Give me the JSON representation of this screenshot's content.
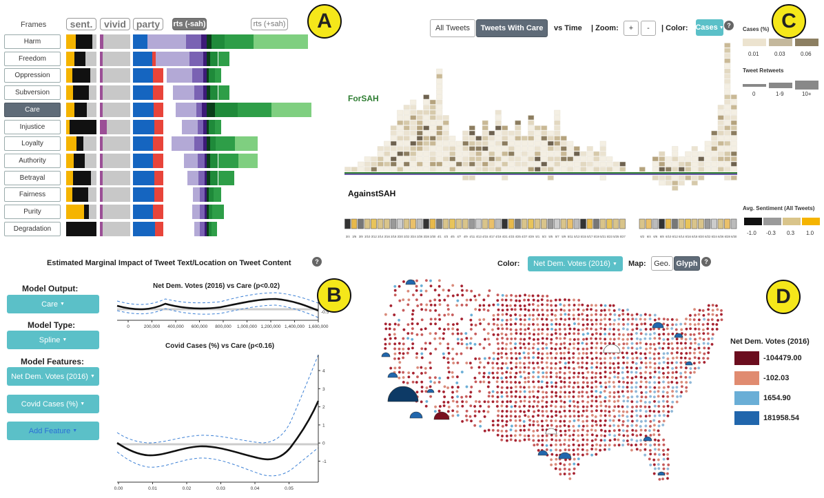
{
  "panel_labels": {
    "a": "A",
    "b": "B",
    "c": "C",
    "d": "D"
  },
  "panel_a": {
    "frames_header": "Frames",
    "col_headers": {
      "sent": "sent.",
      "vivid": "vivid",
      "party": "party",
      "rts_minus": "rts (-sah)",
      "rts_plus": "rts (+sah)"
    },
    "frames": [
      "Harm",
      "Freedom",
      "Oppression",
      "Subversion",
      "Care",
      "Injustice",
      "Loyalty",
      "Authority",
      "Betrayal",
      "Fairness",
      "Purity",
      "Degradation"
    ],
    "selected_frame": "Care",
    "bars": [
      {
        "sent": [
          0.32,
          0.55,
          0.13
        ],
        "vivid": 0.12,
        "party": [
          0.65,
          0.35
        ],
        "rts_minus": [
          0.34,
          0.13,
          0.05
        ],
        "rts_plus": [
          0.04,
          0.12,
          0.25,
          0.48
        ]
      },
      {
        "sent": [
          0.28,
          0.35,
          0.37
        ],
        "vivid": 0.1,
        "party": [
          0.64,
          0.36
        ],
        "rts_minus": [
          0.3,
          0.12,
          0.03
        ],
        "rts_plus": [
          0.03,
          0.07,
          0.1,
          0.0
        ]
      },
      {
        "sent": [
          0.2,
          0.6,
          0.2
        ],
        "vivid": 0.08,
        "party": [
          0.66,
          0.34
        ],
        "rts_minus": [
          0.22,
          0.1,
          0.03
        ],
        "rts_plus": [
          0.02,
          0.05,
          0.06,
          0.0
        ]
      },
      {
        "sent": [
          0.22,
          0.52,
          0.26
        ],
        "vivid": 0.08,
        "party": [
          0.65,
          0.35
        ],
        "rts_minus": [
          0.19,
          0.08,
          0.03
        ],
        "rts_plus": [
          0.03,
          0.07,
          0.1,
          0.0
        ]
      },
      {
        "sent": [
          0.28,
          0.4,
          0.32
        ],
        "vivid": 0.1,
        "party": [
          0.68,
          0.32
        ],
        "rts_minus": [
          0.18,
          0.05,
          0.04
        ],
        "rts_plus": [
          0.07,
          0.2,
          0.3,
          0.35
        ]
      },
      {
        "sent": [
          0.12,
          0.88,
          0.0
        ],
        "vivid": 0.22,
        "party": [
          0.7,
          0.3
        ],
        "rts_minus": [
          0.14,
          0.05,
          0.03
        ],
        "rts_plus": [
          0.02,
          0.05,
          0.06,
          0.0
        ]
      },
      {
        "sent": [
          0.34,
          0.22,
          0.44
        ],
        "vivid": 0.08,
        "party": [
          0.67,
          0.33
        ],
        "rts_minus": [
          0.2,
          0.08,
          0.03
        ],
        "rts_plus": [
          0.03,
          0.05,
          0.17,
          0.2
        ]
      },
      {
        "sent": [
          0.24,
          0.38,
          0.38
        ],
        "vivid": 0.08,
        "party": [
          0.66,
          0.34
        ],
        "rts_minus": [
          0.12,
          0.06,
          0.02
        ],
        "rts_plus": [
          0.03,
          0.07,
          0.18,
          0.17
        ]
      },
      {
        "sent": [
          0.22,
          0.6,
          0.18
        ],
        "vivid": 0.08,
        "party": [
          0.7,
          0.3
        ],
        "rts_minus": [
          0.1,
          0.05,
          0.02
        ],
        "rts_plus": [
          0.03,
          0.07,
          0.14,
          0.0
        ]
      },
      {
        "sent": [
          0.2,
          0.52,
          0.28
        ],
        "vivid": 0.08,
        "party": [
          0.7,
          0.3
        ],
        "rts_minus": [
          0.06,
          0.04,
          0.02
        ],
        "rts_plus": [
          0.02,
          0.04,
          0.07,
          0.0
        ]
      },
      {
        "sent": [
          0.6,
          0.15,
          0.25
        ],
        "vivid": 0.1,
        "party": [
          0.66,
          0.34
        ],
        "rts_minus": [
          0.07,
          0.04,
          0.02
        ],
        "rts_plus": [
          0.02,
          0.03,
          0.1,
          0.0
        ]
      },
      {
        "sent": [
          0.0,
          1.0,
          0.0
        ],
        "vivid": 0.1,
        "party": [
          0.72,
          0.28
        ],
        "rts_minus": [
          0.05,
          0.04,
          0.02
        ],
        "rts_plus": [
          0.02,
          0.02,
          0.05,
          0.0
        ]
      }
    ]
  },
  "panel_b": {
    "title": "Estimated Marginal Impact of Tweet Text/Location on Tweet Content",
    "model_output_label": "Model Output:",
    "model_output_value": "Care",
    "model_type_label": "Model Type:",
    "model_type_value": "Spline",
    "model_features_label": "Model Features:",
    "feature_1": "Net Dem. Votes (2016)",
    "feature_2": "Covid Cases (%)",
    "add_feature": "Add Feature",
    "chart1_title": "Net Dem. Votes (2016) vs Care (p<0.02)",
    "chart1_xticks": [
      "0",
      "200,000",
      "400,000",
      "600,000",
      "800,000",
      "1,000,000",
      "1,200,000",
      "1,400,000",
      "1,600,000"
    ],
    "chart1_ytick": "-0.5",
    "chart2_title": "Covid Cases (%) vs Care (p<0.16)",
    "chart2_xticks": [
      "0.00",
      "0.01",
      "0.02",
      "0.03",
      "0.04",
      "0.05"
    ],
    "chart2_yticks": [
      "4",
      "3",
      "2",
      "1",
      "0",
      "-1"
    ]
  },
  "panel_c": {
    "btn_all": "All Tweets",
    "btn_care": "Tweets With Care",
    "vs_time": "vs Time",
    "zoom_label": "| Zoom:",
    "zoom_in": "+",
    "zoom_out": "-",
    "color_label": "| Color:",
    "color_value": "Cases",
    "for_label": "ForSAH",
    "against_label": "AgainstSAH",
    "legend_cases_title": "Cases (%)",
    "legend_cases": [
      "0.01",
      "0.03",
      "0.06"
    ],
    "legend_retweets_title": "Tweet Retweets",
    "legend_retweets": [
      "0",
      "1-9",
      "10+"
    ],
    "legend_sent_title": "Avg. Sentiment (All Tweets)",
    "legend_sent": [
      "-1.0",
      "-0.3",
      "0.3",
      "1.0"
    ],
    "dates": [
      "3/4",
      "3/6",
      "3/8",
      "3/10",
      "3/12",
      "3/14",
      "3/16",
      "3/18",
      "3/20",
      "3/22",
      "3/24",
      "3/26",
      "3/28",
      "3/30",
      "4/1",
      "4/3",
      "4/5",
      "4/7",
      "4/9",
      "4/11",
      "4/13",
      "4/15",
      "4/17",
      "4/19",
      "4/21",
      "4/23",
      "4/25",
      "4/27",
      "4/29",
      "5/1",
      "5/3",
      "5/5",
      "5/7",
      "5/9",
      "5/11",
      "5/13",
      "5/15",
      "5/17",
      "5/19",
      "5/21",
      "5/23",
      "5/25",
      "5/27",
      "5/29",
      "5/31",
      "6/2",
      "6/4",
      "6/6",
      "6/8",
      "6/10",
      "6/12",
      "6/14",
      "6/16",
      "6/18",
      "6/20",
      "6/22",
      "6/24",
      "6/26",
      "6/28",
      "6/30"
    ],
    "for_counts": [
      1,
      1,
      2,
      3,
      3,
      5,
      6,
      9,
      12,
      13,
      14,
      12,
      15,
      14,
      20,
      11,
      7,
      6,
      8,
      9,
      7,
      10,
      8,
      12,
      9,
      8,
      10,
      7,
      11,
      9,
      9,
      8,
      12,
      7,
      6,
      5,
      4,
      5,
      4,
      6,
      3,
      2,
      2,
      0,
      0,
      1,
      0,
      3,
      4,
      3,
      5,
      3,
      4,
      5,
      4,
      6,
      8,
      13,
      25,
      15
    ],
    "against_counts": [
      0,
      0,
      0,
      0,
      0,
      0,
      0,
      0,
      0,
      0,
      0,
      0,
      0,
      0,
      0,
      0,
      0,
      0,
      1,
      1,
      0,
      0,
      0,
      0,
      1,
      0,
      0,
      0,
      0,
      0,
      0,
      1,
      0,
      0,
      0,
      0,
      0,
      0,
      0,
      1,
      0,
      0,
      0,
      0,
      0,
      0,
      0,
      1,
      2,
      2,
      3,
      2,
      1,
      2,
      1,
      0,
      0,
      0,
      1,
      1
    ]
  },
  "panel_d": {
    "color_label": "Color:",
    "color_value": "Net Dem. Votes (2016)",
    "map_label": "Map:",
    "geo": "Geo.",
    "glyph": "Glyph",
    "legend_title": "Net Dem. Votes (2016)",
    "legend": [
      {
        "label": "-104479.00",
        "color": "#6b0d1e"
      },
      {
        "label": "-102.03",
        "color": "#e08b70"
      },
      {
        "label": "1654.90",
        "color": "#6aaed6"
      },
      {
        "label": "181958.54",
        "color": "#2166ac"
      }
    ]
  },
  "colors": {
    "teal": "#5bc0c8",
    "yellow": "#f5e71a",
    "sent_yellow": "#f5b400",
    "blue_party": "#1565c0",
    "red_party": "#e8443a"
  }
}
